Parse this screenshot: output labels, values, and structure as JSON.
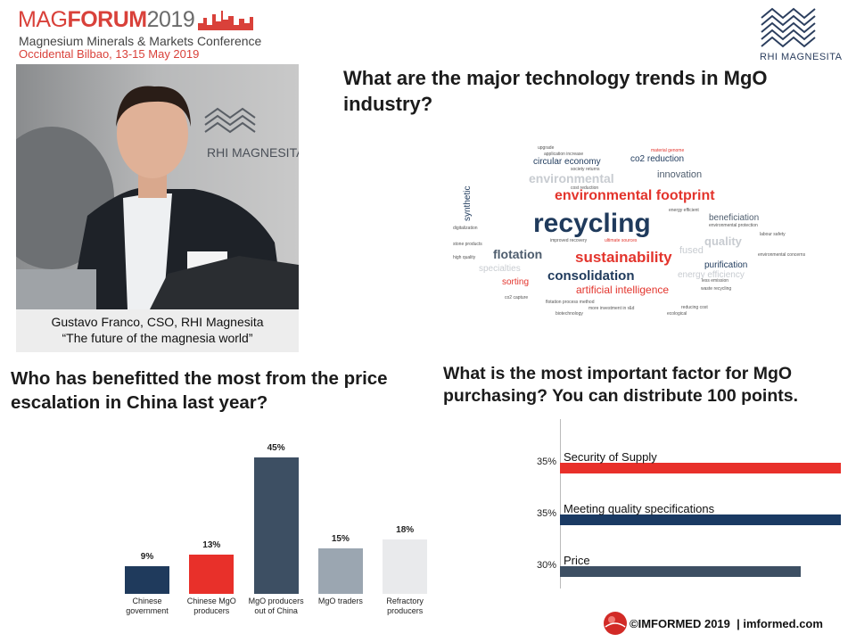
{
  "header": {
    "logo_mag": "MAG",
    "logo_forum": "FORUM",
    "logo_year": "2019",
    "subtitle": "Magnesium Minerals & Markets Conference",
    "venue": "Occidental Bilbao, 13-15 May 2019"
  },
  "company_logo": "RHI MAGNESITA",
  "photo": {
    "wall_text": "RHI MAGNESITA",
    "caption_line1": "Gustavo Franco, CSO, RHI Magnesita",
    "caption_line2": "“The future of the magnesia world”"
  },
  "word_cloud": {
    "question": "What are the major technology trends in MgO industry?",
    "words": [
      "recycling",
      "environmental footprint",
      "sustainability",
      "consolidation",
      "artificial intelligence",
      "flotation",
      "circular economy",
      "co2 reduction",
      "innovation",
      "environmental",
      "beneficiation",
      "quality",
      "purification",
      "sorting",
      "specialties",
      "energy efficiency",
      "synthetic",
      "digitalization",
      "environmental protection",
      "labour safety",
      "ultimate sources",
      "fused",
      "reducing cost",
      "ecological",
      "biotechnology",
      "more investment in r&d",
      "flotation process method",
      "co2 capture",
      "environmental concerns",
      "less emission",
      "waste recycling",
      "energy efficient",
      "upgrade",
      "application increase",
      "material genome",
      "society returns",
      "cost reduction",
      "improved recovery",
      "stone products",
      "high quality"
    ]
  },
  "chart_data": [
    {
      "type": "bar",
      "title": "Who has benefitted the most from the price escalation in China last year?",
      "categories": [
        "Chinese government",
        "Chinese MgO producers",
        "MgO producers out of China",
        "MgO traders",
        "Refractory producers"
      ],
      "values": [
        9,
        13,
        45,
        15,
        18
      ],
      "value_labels": [
        "9%",
        "13%",
        "45%",
        "15%",
        "18%"
      ],
      "colors": [
        "#1f3a5c",
        "#e8302a",
        "#3d4f63",
        "#9ba6b1",
        "#e9eaec"
      ]
    },
    {
      "type": "barh",
      "title": "What is the most important factor for MgO purchasing? You can distribute 100 points.",
      "categories": [
        "Security of Supply",
        "Meeting quality specifications",
        "Price"
      ],
      "values": [
        35,
        35,
        30
      ],
      "value_labels": [
        "35%",
        "35%",
        "30%"
      ],
      "colors": [
        "#e8302a",
        "#1a3a63",
        "#3d4f63"
      ]
    }
  ],
  "footer": "©IMFORMED 2019  | imformed.com"
}
